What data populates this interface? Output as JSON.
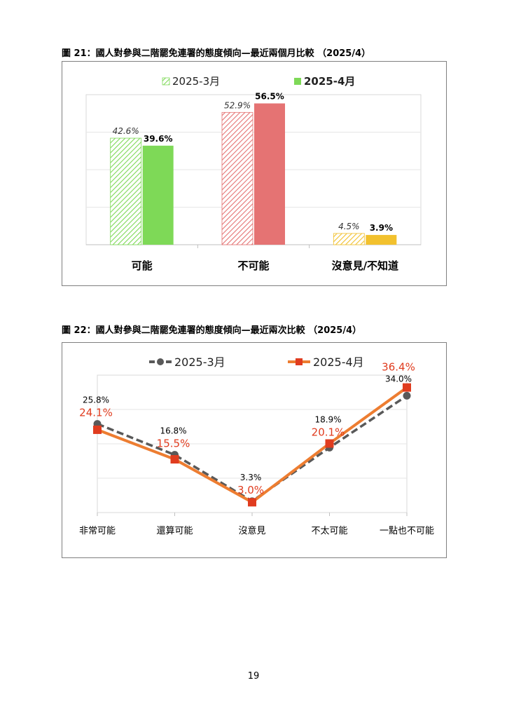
{
  "figures": [
    {
      "title": "圖 21：國人對參與二階罷免連署的態度傾向—最近兩個月比較 （2025/4）",
      "chart_data": {
        "type": "bar",
        "categories": [
          "可能",
          "不可能",
          "沒意見/不知道"
        ],
        "series": [
          {
            "name": "2025-3月",
            "values": [
              42.6,
              52.9,
              4.5
            ],
            "labels": [
              "42.6%",
              "52.9%",
              "4.5%"
            ],
            "style": "hatched"
          },
          {
            "name": "2025-4月",
            "values": [
              39.6,
              56.5,
              3.9
            ],
            "labels": [
              "39.6%",
              "56.5%",
              "3.9%"
            ],
            "style": "solid"
          }
        ],
        "category_colors": [
          "#7ed957",
          "#e57373",
          "#f2c12e"
        ],
        "ylim": [
          0,
          60
        ],
        "grid": true,
        "legend": "top"
      }
    },
    {
      "title": "圖 22：國人對參與二階罷免連署的態度傾向—最近兩次比較 （2025/4）",
      "chart_data": {
        "type": "line",
        "categories": [
          "非常可能",
          "還算可能",
          "沒意見",
          "不太可能",
          "一點也不可能"
        ],
        "series": [
          {
            "name": "2025-3月",
            "values": [
              25.8,
              16.8,
              3.3,
              18.9,
              34.0
            ],
            "labels": [
              "25.8%",
              "16.8%",
              "3.3%",
              "18.9%",
              "34.0%"
            ],
            "color": "#595959",
            "dashed": true,
            "marker": "circle"
          },
          {
            "name": "2025-4月",
            "values": [
              24.1,
              15.5,
              3.0,
              20.1,
              36.4
            ],
            "labels": [
              "24.1%",
              "15.5%",
              "3.0%",
              "20.1%",
              "36.4%"
            ],
            "color": "#ed7d31",
            "label_color": "#e03c1f",
            "marker": "square"
          }
        ],
        "ylim": [
          0,
          40
        ],
        "grid": true,
        "legend": "top"
      }
    }
  ],
  "page_number": "19"
}
